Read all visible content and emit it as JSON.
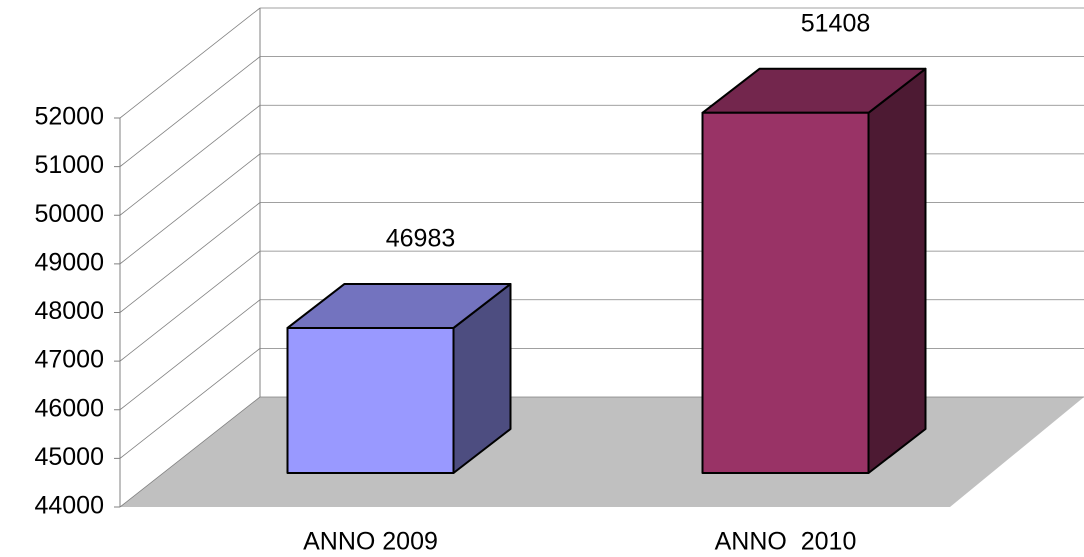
{
  "chart_data": {
    "type": "bar3d",
    "categories": [
      "ANNO 2009",
      "ANNO  2010"
    ],
    "values": [
      46983,
      51408
    ],
    "colors": [
      "#9999ff",
      "#993366"
    ],
    "ylim": [
      44000,
      52000
    ],
    "yticks": [
      44000,
      45000,
      46000,
      47000,
      48000,
      49000,
      50000,
      51000,
      52000
    ],
    "grid": true
  }
}
